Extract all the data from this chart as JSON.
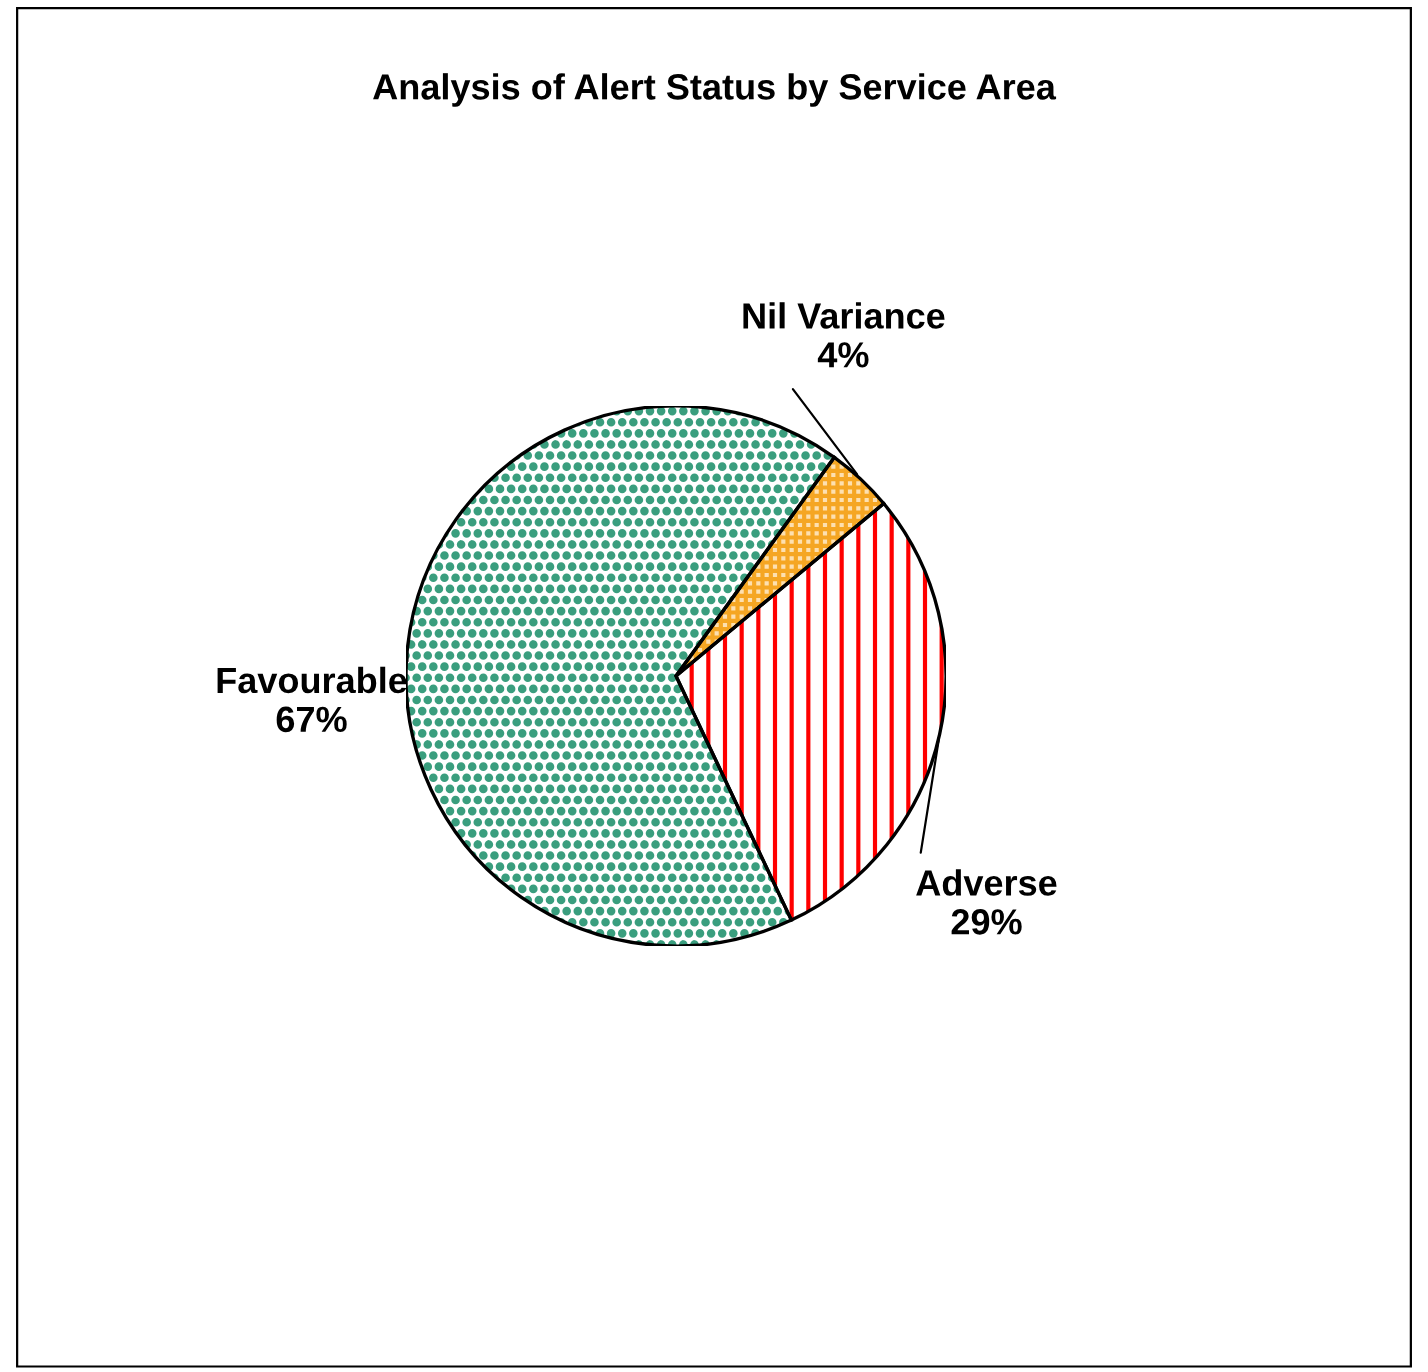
{
  "chart_data": {
    "type": "pie",
    "title": "Analysis of Alert Status by Service Area",
    "categories": [
      "Adverse",
      "Nil Variance",
      "Favourable"
    ],
    "values": [
      29,
      4,
      67
    ],
    "colors": [
      "#ff0000",
      "#f5a623",
      "#3a9e7e"
    ],
    "value_labels": [
      "29%",
      "4%",
      "67%"
    ]
  }
}
